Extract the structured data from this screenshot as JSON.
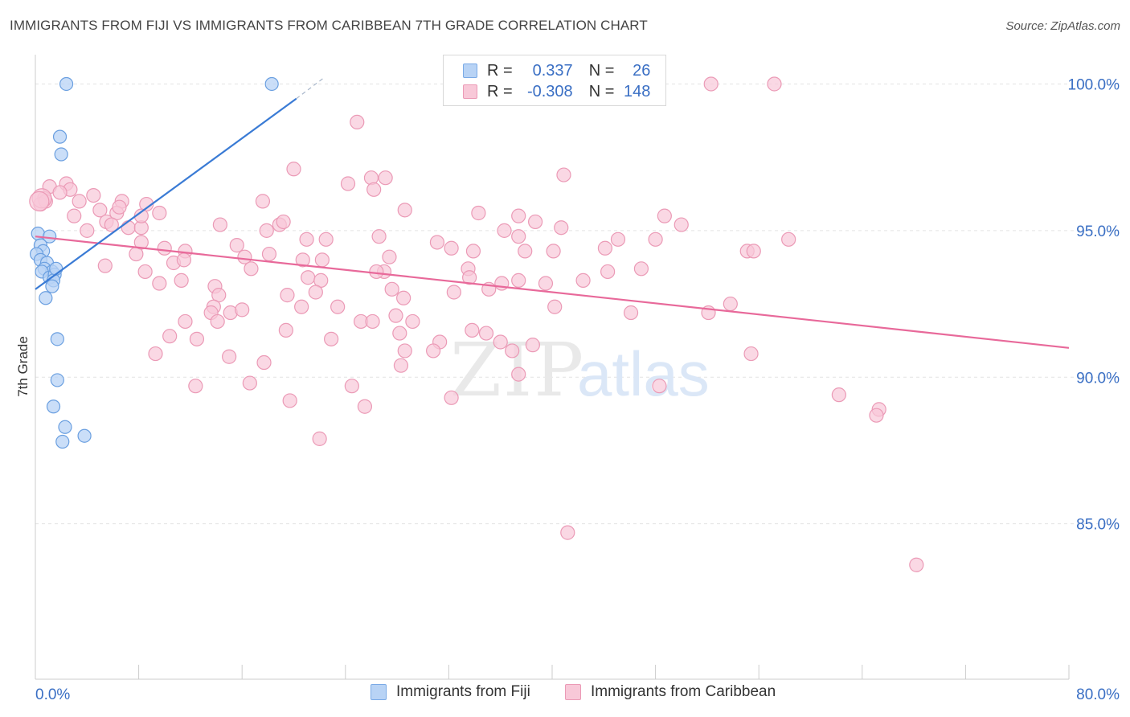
{
  "title": "IMMIGRANTS FROM FIJI VS IMMIGRANTS FROM CARIBBEAN 7TH GRADE CORRELATION CHART",
  "source": "Source: ZipAtlas.com",
  "watermark": {
    "part1": "ZIP",
    "part2": "atlas"
  },
  "legend": {
    "series1": {
      "r_label": "R =",
      "r_value": "0.337",
      "n_label": "N =",
      "n_value": "26",
      "fill": "#b8d3f5",
      "stroke": "#7aaae6"
    },
    "series2": {
      "r_label": "R =",
      "r_value": "-0.308",
      "n_label": "N =",
      "n_value": "148",
      "fill": "#f8c8d8",
      "stroke": "#eb9ab6"
    }
  },
  "bottom_legend": {
    "fiji": "Immigrants from Fiji",
    "caribbean": "Immigrants from Caribbean"
  },
  "chart_data": {
    "type": "scatter",
    "title": "IMMIGRANTS FROM FIJI VS IMMIGRANTS FROM CARIBBEAN 7TH GRADE CORRELATION CHART",
    "xlabel": "",
    "ylabel": "7th Grade",
    "xlim": [
      0,
      80
    ],
    "ylim": [
      79.7,
      101
    ],
    "x_tick_labels": [
      "0.0%",
      "80.0%"
    ],
    "y_ticks": [
      85,
      90,
      95,
      100
    ],
    "y_tick_labels": [
      "85.0%",
      "90.0%",
      "95.0%",
      "100.0%"
    ],
    "grid": true,
    "series": [
      {
        "name": "Immigrants from Fiji",
        "color": "#3a7bd5",
        "fill": "#b8d3f5",
        "trend": {
          "x": [
            0,
            20.2
          ],
          "y": [
            93.0,
            99.5
          ],
          "dashed_to": {
            "x": 22.3,
            "y": 100.2
          }
        },
        "points": [
          [
            2.4,
            100.0
          ],
          [
            18.3,
            100.0
          ],
          [
            1.9,
            98.2
          ],
          [
            2.0,
            97.6
          ],
          [
            0.2,
            94.9
          ],
          [
            1.1,
            94.8
          ],
          [
            0.4,
            94.5
          ],
          [
            0.6,
            94.3
          ],
          [
            0.1,
            94.2
          ],
          [
            0.4,
            94.0
          ],
          [
            0.9,
            93.9
          ],
          [
            0.7,
            93.7
          ],
          [
            1.3,
            93.6
          ],
          [
            0.5,
            93.6
          ],
          [
            1.1,
            93.4
          ],
          [
            1.5,
            93.5
          ],
          [
            1.4,
            93.3
          ],
          [
            1.3,
            93.1
          ],
          [
            0.8,
            92.7
          ],
          [
            1.7,
            91.3
          ],
          [
            1.7,
            89.9
          ],
          [
            1.4,
            89.0
          ],
          [
            2.3,
            88.3
          ],
          [
            2.1,
            87.8
          ],
          [
            3.8,
            88.0
          ],
          [
            1.6,
            93.7
          ]
        ]
      },
      {
        "name": "Immigrants from Caribbean",
        "color": "#e8699a",
        "fill": "#f8c8d8",
        "trend": {
          "x": [
            0,
            80
          ],
          "y": [
            94.8,
            91.0
          ]
        },
        "points": [
          [
            52.3,
            100.0
          ],
          [
            57.2,
            100.0
          ],
          [
            24.9,
            98.7
          ],
          [
            20.0,
            97.1
          ],
          [
            40.9,
            96.9
          ],
          [
            24.2,
            96.6
          ],
          [
            26.0,
            96.8
          ],
          [
            27.1,
            96.8
          ],
          [
            26.2,
            96.4
          ],
          [
            1.1,
            96.5
          ],
          [
            2.4,
            96.6
          ],
          [
            2.7,
            96.4
          ],
          [
            1.9,
            96.3
          ],
          [
            0.7,
            96.1
          ],
          [
            0.4,
            95.9
          ],
          [
            0.8,
            96.0
          ],
          [
            3.4,
            96.0
          ],
          [
            4.5,
            96.2
          ],
          [
            6.7,
            96.0
          ],
          [
            17.6,
            96.0
          ],
          [
            5.0,
            95.7
          ],
          [
            6.3,
            95.6
          ],
          [
            6.5,
            95.8
          ],
          [
            8.6,
            95.9
          ],
          [
            9.6,
            95.6
          ],
          [
            3.0,
            95.5
          ],
          [
            5.5,
            95.3
          ],
          [
            5.9,
            95.2
          ],
          [
            7.2,
            95.1
          ],
          [
            8.2,
            95.1
          ],
          [
            4.0,
            95.0
          ],
          [
            8.2,
            95.5
          ],
          [
            14.3,
            95.2
          ],
          [
            18.9,
            95.2
          ],
          [
            19.2,
            95.3
          ],
          [
            17.9,
            95.0
          ],
          [
            28.6,
            95.7
          ],
          [
            34.3,
            95.6
          ],
          [
            36.3,
            95.0
          ],
          [
            37.4,
            95.5
          ],
          [
            38.7,
            95.3
          ],
          [
            40.7,
            95.1
          ],
          [
            48.7,
            95.5
          ],
          [
            50.0,
            95.2
          ],
          [
            21.0,
            94.7
          ],
          [
            22.5,
            94.7
          ],
          [
            26.6,
            94.8
          ],
          [
            31.1,
            94.6
          ],
          [
            37.4,
            94.8
          ],
          [
            45.1,
            94.7
          ],
          [
            48.0,
            94.7
          ],
          [
            58.3,
            94.7
          ],
          [
            7.8,
            94.2
          ],
          [
            8.2,
            94.6
          ],
          [
            10.0,
            94.4
          ],
          [
            11.6,
            94.3
          ],
          [
            15.6,
            94.5
          ],
          [
            16.2,
            94.1
          ],
          [
            18.1,
            94.2
          ],
          [
            20.7,
            94.0
          ],
          [
            22.2,
            94.0
          ],
          [
            27.4,
            94.1
          ],
          [
            32.2,
            94.4
          ],
          [
            33.9,
            94.3
          ],
          [
            37.9,
            94.3
          ],
          [
            40.1,
            94.3
          ],
          [
            44.1,
            94.4
          ],
          [
            55.1,
            94.3
          ],
          [
            55.6,
            94.3
          ],
          [
            5.4,
            93.8
          ],
          [
            8.5,
            93.6
          ],
          [
            10.7,
            93.9
          ],
          [
            11.5,
            94.0
          ],
          [
            16.7,
            93.7
          ],
          [
            21.1,
            93.4
          ],
          [
            22.1,
            93.3
          ],
          [
            27.0,
            93.6
          ],
          [
            33.5,
            93.7
          ],
          [
            33.6,
            93.4
          ],
          [
            36.1,
            93.2
          ],
          [
            37.4,
            93.3
          ],
          [
            39.5,
            93.2
          ],
          [
            42.4,
            93.3
          ],
          [
            44.3,
            93.6
          ],
          [
            46.9,
            93.7
          ],
          [
            9.6,
            93.2
          ],
          [
            11.3,
            93.3
          ],
          [
            13.9,
            93.1
          ],
          [
            14.2,
            92.8
          ],
          [
            13.8,
            92.4
          ],
          [
            19.5,
            92.8
          ],
          [
            21.7,
            92.9
          ],
          [
            26.4,
            93.6
          ],
          [
            27.6,
            93.0
          ],
          [
            28.5,
            92.7
          ],
          [
            32.4,
            92.9
          ],
          [
            35.1,
            93.0
          ],
          [
            13.6,
            92.2
          ],
          [
            15.1,
            92.2
          ],
          [
            16.0,
            92.3
          ],
          [
            20.6,
            92.4
          ],
          [
            23.4,
            92.4
          ],
          [
            27.9,
            92.1
          ],
          [
            29.2,
            91.9
          ],
          [
            40.2,
            92.4
          ],
          [
            46.1,
            92.2
          ],
          [
            52.1,
            92.2
          ],
          [
            53.8,
            92.5
          ],
          [
            11.6,
            91.9
          ],
          [
            14.1,
            91.9
          ],
          [
            19.4,
            91.6
          ],
          [
            25.2,
            91.9
          ],
          [
            26.1,
            91.9
          ],
          [
            28.2,
            91.5
          ],
          [
            33.8,
            91.6
          ],
          [
            34.9,
            91.5
          ],
          [
            10.4,
            91.4
          ],
          [
            12.5,
            91.3
          ],
          [
            22.9,
            91.3
          ],
          [
            31.3,
            91.2
          ],
          [
            36.0,
            91.2
          ],
          [
            38.5,
            91.1
          ],
          [
            9.3,
            90.8
          ],
          [
            15.0,
            90.7
          ],
          [
            17.7,
            90.5
          ],
          [
            28.6,
            90.9
          ],
          [
            30.8,
            90.9
          ],
          [
            36.9,
            90.9
          ],
          [
            55.4,
            90.8
          ],
          [
            28.3,
            90.4
          ],
          [
            37.4,
            90.1
          ],
          [
            12.4,
            89.7
          ],
          [
            16.6,
            89.8
          ],
          [
            24.5,
            89.7
          ],
          [
            48.3,
            89.7
          ],
          [
            19.7,
            89.2
          ],
          [
            25.5,
            89.0
          ],
          [
            32.2,
            89.3
          ],
          [
            62.2,
            89.4
          ],
          [
            65.3,
            88.9
          ],
          [
            65.1,
            88.7
          ],
          [
            22.0,
            87.9
          ],
          [
            41.2,
            84.7
          ],
          [
            68.2,
            83.6
          ]
        ]
      }
    ]
  }
}
